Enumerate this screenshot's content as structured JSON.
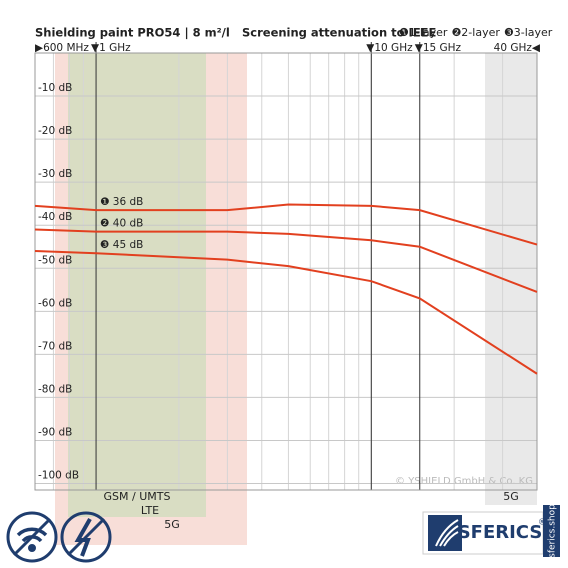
{
  "chart_data": {
    "type": "line",
    "title": "Shielding paint PRO54 | 8 m²/l",
    "subtitle": "Screening attenuation to IEEE",
    "x": [
      0.6,
      1,
      3,
      5,
      10,
      15,
      40
    ],
    "series": [
      {
        "name": "❶1-layer",
        "color": "#e2401f",
        "values": [
          -35.5,
          -36.5,
          -36.5,
          -35.2,
          -35.5,
          -36.5,
          -44.5
        ]
      },
      {
        "name": "❷2-layer",
        "color": "#e2401f",
        "values": [
          -41,
          -41.5,
          -41.5,
          -42,
          -43.5,
          -45,
          -55.5
        ]
      },
      {
        "name": "❸3-layer",
        "color": "#e2401f",
        "values": [
          -46,
          -46.5,
          -48,
          -49.5,
          -53,
          -57,
          -74.5
        ]
      }
    ],
    "annotations": [
      "❶ 36 dB",
      "❷ 40 dB",
      "❸ 45 dB"
    ],
    "xlim": [
      0.6,
      40
    ],
    "log_x": true,
    "xticks": [
      {
        "value": 0.6,
        "label": "▶600 MHz"
      },
      {
        "value": 1,
        "label": "▼1 GHz"
      },
      {
        "value": 10,
        "label": "▼10 GHz"
      },
      {
        "value": 15,
        "label": "▼15 GHz"
      },
      {
        "value": 40,
        "label": "40 GHz◀"
      }
    ],
    "ylim": [
      -101.5,
      0
    ],
    "yticks": [
      {
        "value": -10,
        "label": "-10 dB"
      },
      {
        "value": -20,
        "label": "-20 dB"
      },
      {
        "value": -30,
        "label": "-30 dB"
      },
      {
        "value": -40,
        "label": "-40 dB"
      },
      {
        "value": -50,
        "label": "-50 dB"
      },
      {
        "value": -60,
        "label": "-60 dB"
      },
      {
        "value": -70,
        "label": "-70 dB"
      },
      {
        "value": -80,
        "label": "-80 dB"
      },
      {
        "value": -90,
        "label": "-90 dB"
      },
      {
        "value": -100,
        "label": "-100 dB"
      }
    ],
    "grid": true,
    "bands": [
      "GSM / UMTS",
      "LTE",
      "5G",
      "5G"
    ],
    "copyright": "© YSHIELD GmbH & Co. KG"
  },
  "logo": {
    "name": "SFERICS",
    "mark": "®",
    "url": "sferics.shop"
  }
}
